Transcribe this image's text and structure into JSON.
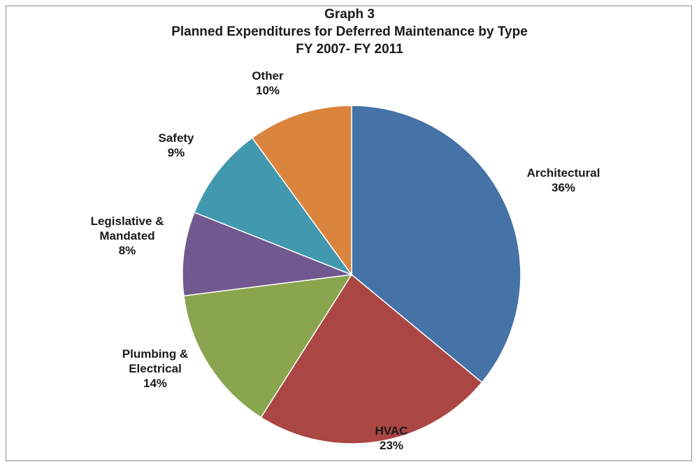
{
  "chart_data": {
    "type": "pie",
    "title": "Graph 3",
    "subtitle": "Planned Expenditures for Deferred Maintenance by Type",
    "subtitle2": "FY 2007- FY 2011",
    "slices": [
      {
        "name": "Architectural",
        "label_lines": [
          "Architectural"
        ],
        "value": 36,
        "value_label": "36%",
        "color": "#4572a7"
      },
      {
        "name": "HVAC",
        "label_lines": [
          "HVAC"
        ],
        "value": 23,
        "value_label": "23%",
        "color": "#aa4643"
      },
      {
        "name": "Plumbing & Electrical",
        "label_lines": [
          "Plumbing &",
          "Electrical"
        ],
        "value": 14,
        "value_label": "14%",
        "color": "#89a54e"
      },
      {
        "name": "Legislative & Mandated",
        "label_lines": [
          "Legislative &",
          "Mandated"
        ],
        "value": 8,
        "value_label": "8%",
        "color": "#71588f"
      },
      {
        "name": "Safety",
        "label_lines": [
          "Safety"
        ],
        "value": 9,
        "value_label": "9%",
        "color": "#4198af"
      },
      {
        "name": "Other",
        "label_lines": [
          "Other"
        ],
        "value": 10,
        "value_label": "10%",
        "color": "#db843d"
      }
    ]
  }
}
